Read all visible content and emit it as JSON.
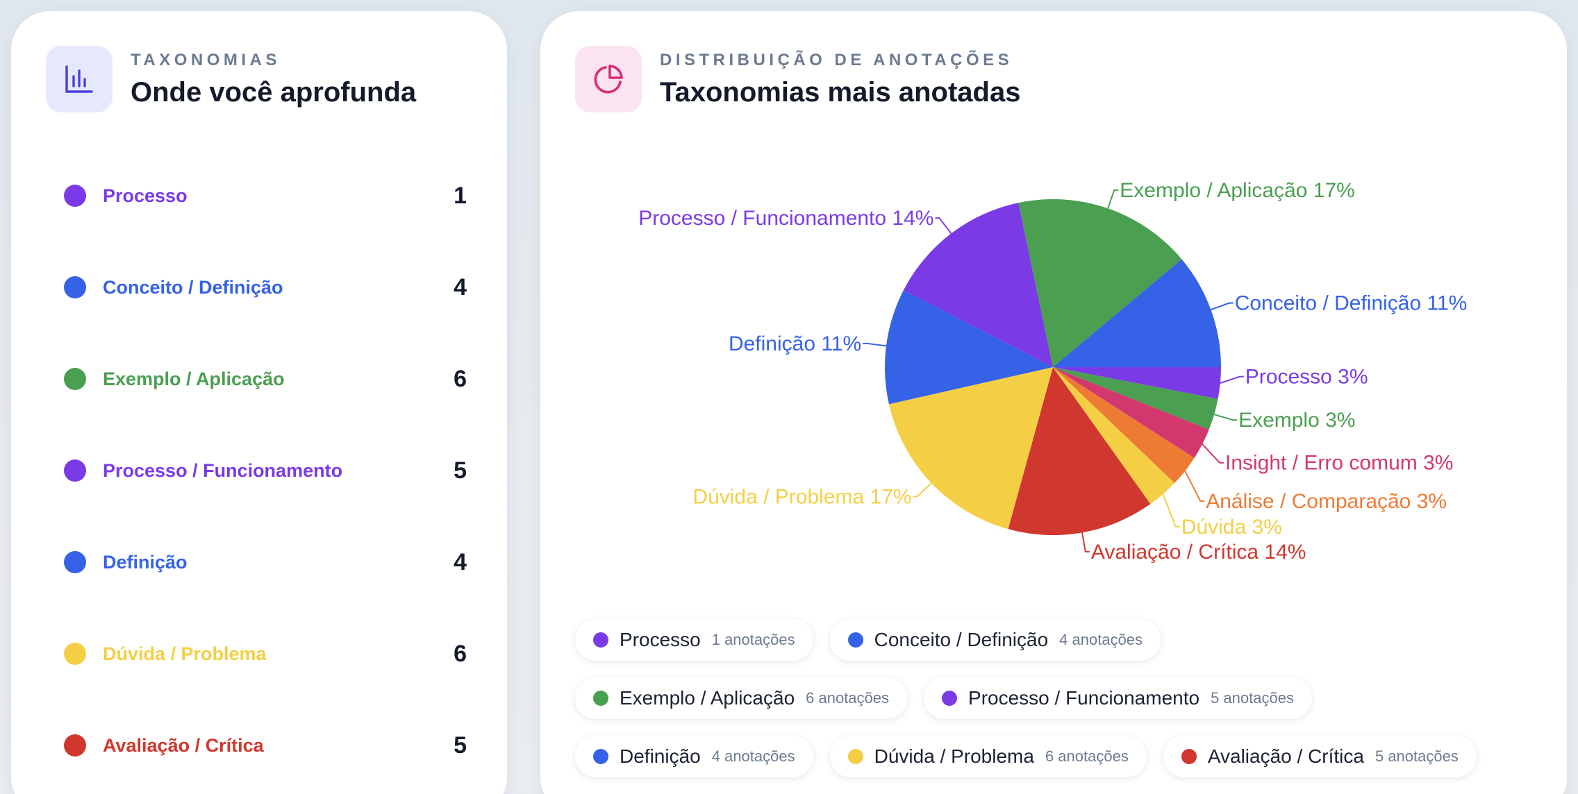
{
  "left_panel": {
    "eyebrow": "TAXONOMIAS",
    "title": "Onde você aprofunda",
    "icon": "bar-chart-icon",
    "items": [
      {
        "label": "Processo",
        "count": "1",
        "color": "#7a3be6"
      },
      {
        "label": "Conceito / Definição",
        "count": "4",
        "color": "#3562e6"
      },
      {
        "label": "Exemplo / Aplicação",
        "count": "6",
        "color": "#4a9f50"
      },
      {
        "label": "Processo / Funcionamento",
        "count": "5",
        "color": "#7a3be6"
      },
      {
        "label": "Definição",
        "count": "4",
        "color": "#3562e6"
      },
      {
        "label": "Dúvida / Problema",
        "count": "6",
        "color": "#f4cf45"
      },
      {
        "label": "Avaliação / Crítica",
        "count": "5",
        "color": "#d0372e"
      }
    ]
  },
  "right_panel": {
    "eyebrow": "DISTRIBUIÇÃO DE ANOTAÇÕES",
    "title": "Taxonomias mais anotadas",
    "icon": "pie-chart-icon",
    "legend": [
      [
        {
          "name": "Processo",
          "count": "1 anotações",
          "color": "#7a3be6"
        },
        {
          "name": "Conceito / Definição",
          "count": "4 anotações",
          "color": "#3562e6"
        }
      ],
      [
        {
          "name": "Exemplo / Aplicação",
          "count": "6 anotações",
          "color": "#4a9f50"
        },
        {
          "name": "Processo / Funcionamento",
          "count": "5 anotações",
          "color": "#7a3be6"
        }
      ],
      [
        {
          "name": "Definição",
          "count": "4 anotações",
          "color": "#3562e6"
        },
        {
          "name": "Dúvida / Problema",
          "count": "6 anotações",
          "color": "#f4cf45"
        },
        {
          "name": "Avaliação / Crítica",
          "count": "5 anotações",
          "color": "#d0372e"
        }
      ]
    ]
  },
  "chart_data": {
    "type": "pie",
    "title": "Taxonomias mais anotadas",
    "slices": [
      {
        "label": "Processo",
        "value": 3,
        "display": "Processo 3%",
        "color": "#7a3be6"
      },
      {
        "label": "Exemplo",
        "value": 3,
        "display": "Exemplo 3%",
        "color": "#4a9f50"
      },
      {
        "label": "Insight / Erro comum",
        "value": 3,
        "display": "Insight / Erro comum 3%",
        "color": "#d2386d"
      },
      {
        "label": "Análise / Comparação",
        "value": 3,
        "display": "Análise / Comparação 3%",
        "color": "#ee7b34"
      },
      {
        "label": "Dúvida",
        "value": 3,
        "display": "Dúvida 3%",
        "color": "#f4cf45"
      },
      {
        "label": "Avaliação / Crítica",
        "value": 14,
        "display": "Avaliação / Crítica 14%",
        "color": "#d0372e"
      },
      {
        "label": "Dúvida / Problema",
        "value": 17,
        "display": "Dúvida / Problema 17%",
        "color": "#f4cf45"
      },
      {
        "label": "Definição",
        "value": 11,
        "display": "Definição 11%",
        "color": "#3562e6"
      },
      {
        "label": "Processo / Funcionamento",
        "value": 14,
        "display": "Processo / Funcionamento 14%",
        "color": "#7a3be6"
      },
      {
        "label": "Exemplo / Aplicação",
        "value": 17,
        "display": "Exemplo / Aplicação 17%",
        "color": "#4a9f50"
      },
      {
        "label": "Conceito / Definição",
        "value": 11,
        "display": "Conceito / Definição 11%",
        "color": "#3562e6"
      }
    ]
  }
}
